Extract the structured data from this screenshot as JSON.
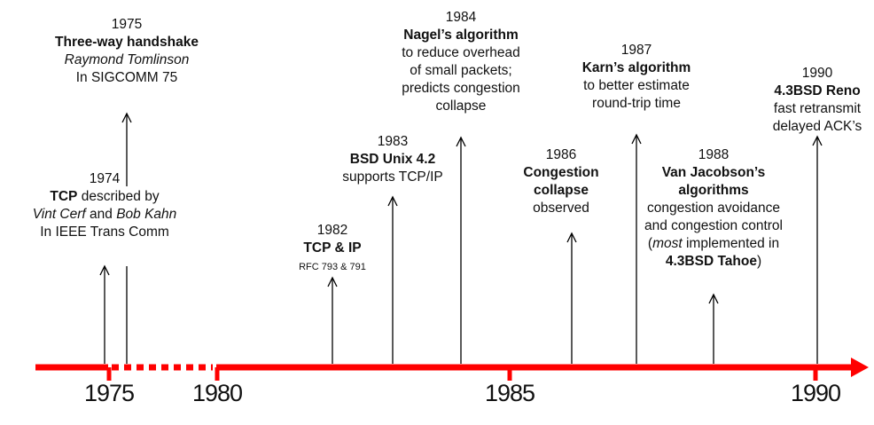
{
  "axis": {
    "color": "#ff0000",
    "labels": [
      {
        "year": "1975"
      },
      {
        "year": "1980"
      },
      {
        "year": "1985"
      },
      {
        "year": "1990"
      }
    ]
  },
  "events": [
    {
      "id": "1975",
      "lines": [
        [
          {
            "t": "1975"
          }
        ],
        [
          {
            "t": "Three-way handshake",
            "s": "b"
          }
        ],
        [
          {
            "t": "Raymond Tomlinson",
            "s": "i"
          }
        ],
        [
          {
            "t": "In SIGCOMM 75"
          }
        ]
      ]
    },
    {
      "id": "1974",
      "lines": [
        [
          {
            "t": "1974"
          }
        ],
        [
          {
            "t": "TCP",
            "s": "b"
          },
          {
            "t": " described by"
          }
        ],
        [
          {
            "t": "Vint Cerf",
            "s": "i"
          },
          {
            "t": " and "
          },
          {
            "t": "Bob Kahn",
            "s": "i"
          }
        ],
        [
          {
            "t": "In IEEE Trans Comm"
          }
        ]
      ]
    },
    {
      "id": "1982",
      "lines": [
        [
          {
            "t": "1982"
          }
        ],
        [
          {
            "t": "TCP & IP",
            "s": "b"
          }
        ],
        [
          {
            "t": "RFC 793 & 791",
            "s": "s"
          }
        ]
      ]
    },
    {
      "id": "1983",
      "lines": [
        [
          {
            "t": "1983"
          }
        ],
        [
          {
            "t": "BSD Unix 4.2",
            "s": "b"
          }
        ],
        [
          {
            "t": "supports TCP/IP"
          }
        ]
      ]
    },
    {
      "id": "1984",
      "lines": [
        [
          {
            "t": "1984"
          }
        ],
        [
          {
            "t": "Nagel’s algorithm",
            "s": "b"
          }
        ],
        [
          {
            "t": "to reduce overhead"
          }
        ],
        [
          {
            "t": "of small packets;"
          }
        ],
        [
          {
            "t": "predicts congestion"
          }
        ],
        [
          {
            "t": "collapse"
          }
        ]
      ]
    },
    {
      "id": "1986",
      "lines": [
        [
          {
            "t": "1986"
          }
        ],
        [
          {
            "t": "Congestion",
            "s": "b"
          }
        ],
        [
          {
            "t": "collapse",
            "s": "b"
          }
        ],
        [
          {
            "t": "observed"
          }
        ]
      ]
    },
    {
      "id": "1987",
      "lines": [
        [
          {
            "t": "1987"
          }
        ],
        [
          {
            "t": "Karn’s algorithm",
            "s": "b"
          }
        ],
        [
          {
            "t": "to better estimate"
          }
        ],
        [
          {
            "t": "round-trip time"
          }
        ]
      ]
    },
    {
      "id": "1988",
      "lines": [
        [
          {
            "t": "1988"
          }
        ],
        [
          {
            "t": "Van Jacobson’s",
            "s": "b"
          }
        ],
        [
          {
            "t": "algorithms",
            "s": "b"
          }
        ],
        [
          {
            "t": "congestion avoidance"
          }
        ],
        [
          {
            "t": "and congestion control"
          }
        ],
        [
          {
            "t": "("
          },
          {
            "t": "most",
            "s": "i"
          },
          {
            "t": " implemented in"
          }
        ],
        [
          {
            "t": "4.3BSD Tahoe",
            "s": "b"
          },
          {
            "t": ")"
          }
        ]
      ]
    },
    {
      "id": "1990",
      "lines": [
        [
          {
            "t": "1990"
          }
        ],
        [
          {
            "t": "4.3BSD Reno",
            "s": "b"
          }
        ],
        [
          {
            "t": "fast retransmit"
          }
        ],
        [
          {
            "t": "delayed ACK’s"
          }
        ]
      ]
    }
  ]
}
